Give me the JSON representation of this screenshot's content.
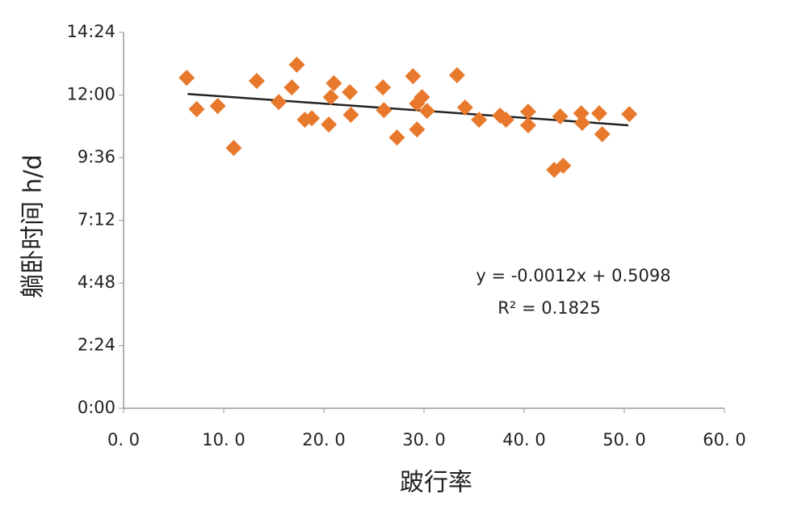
{
  "chart_data": {
    "type": "scatter",
    "x_label": "跛行率",
    "y_label": "躺卧时间 h/d",
    "xlim": [
      0,
      60
    ],
    "ylim": [
      0,
      14.4
    ],
    "xticks": [
      {
        "value": 0,
        "label": "0. 0"
      },
      {
        "value": 10,
        "label": "10. 0"
      },
      {
        "value": 20,
        "label": "20. 0"
      },
      {
        "value": 30,
        "label": "30. 0"
      },
      {
        "value": 40,
        "label": "40. 0"
      },
      {
        "value": 50,
        "label": "50. 0"
      },
      {
        "value": 60,
        "label": "60. 0"
      }
    ],
    "yticks": [
      {
        "value": 0,
        "label": "0:00"
      },
      {
        "value": 2.4,
        "label": "2:24"
      },
      {
        "value": 4.8,
        "label": "4:48"
      },
      {
        "value": 7.2,
        "label": "7:12"
      },
      {
        "value": 9.6,
        "label": "9:36"
      },
      {
        "value": 12,
        "label": "12:00"
      },
      {
        "value": 14.4,
        "label": "14:24"
      }
    ],
    "color": "#e8792c",
    "x": [
      6.3,
      7.3,
      9.4,
      11.0,
      13.3,
      15.5,
      16.8,
      17.3,
      18.1,
      18.8,
      20.5,
      20.7,
      21.0,
      22.6,
      22.7,
      25.9,
      26.0,
      27.3,
      28.9,
      29.3,
      29.3,
      29.8,
      30.3,
      33.3,
      34.1,
      35.5,
      37.6,
      38.2,
      40.4,
      40.4,
      43.0,
      43.9,
      43.6,
      45.7,
      45.8,
      47.5,
      47.8,
      50.5
    ],
    "values": [
      12.66,
      11.46,
      11.58,
      9.97,
      12.54,
      11.73,
      12.29,
      13.16,
      11.05,
      11.11,
      10.87,
      11.92,
      12.45,
      12.11,
      11.24,
      12.29,
      11.42,
      10.37,
      12.72,
      11.67,
      10.68,
      11.92,
      11.39,
      12.76,
      11.52,
      11.05,
      11.21,
      11.05,
      11.36,
      10.84,
      9.13,
      9.29,
      11.18,
      11.3,
      10.93,
      11.3,
      10.5,
      11.27
    ],
    "trendline": {
      "x": [
        6.4,
        50.4
      ],
      "y": [
        12.04,
        10.84
      ],
      "color": "#222222"
    },
    "annotations": [
      "y = -0.0012x + 0.5098",
      "R² = 0.1825"
    ]
  }
}
